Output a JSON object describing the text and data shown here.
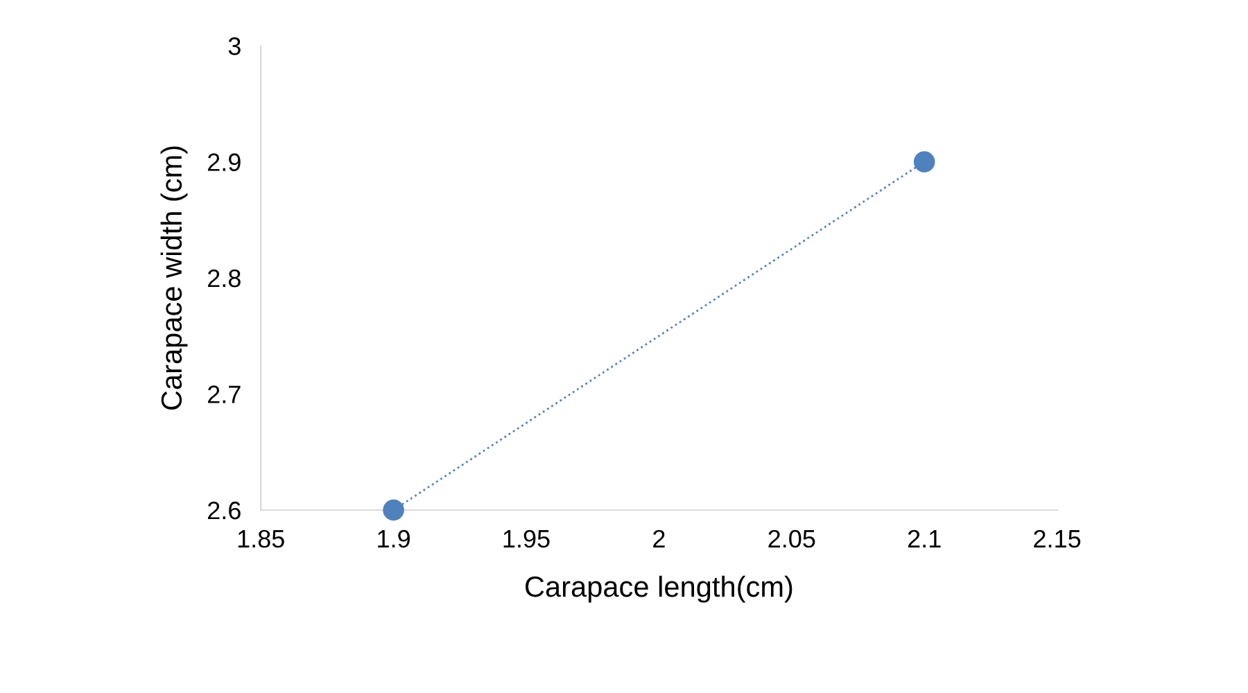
{
  "chart_data": {
    "type": "line",
    "xlabel": "Carapace length(cm)",
    "ylabel": "Carapace width (cm)",
    "x": [
      1.9,
      2.1
    ],
    "series": [
      {
        "color": "#4f81bd",
        "values": [
          2.6,
          2.9
        ]
      }
    ],
    "marker": "circle",
    "line_style": "dotted",
    "grid": false,
    "legend": false,
    "xlim": [
      1.85,
      2.15
    ],
    "xticks": [
      1.85,
      1.9,
      1.95,
      2,
      2.05,
      2.1,
      2.15
    ],
    "ylim": [
      2.6,
      3
    ],
    "yticks": [
      2.6,
      2.7,
      2.8,
      2.9,
      3
    ]
  }
}
